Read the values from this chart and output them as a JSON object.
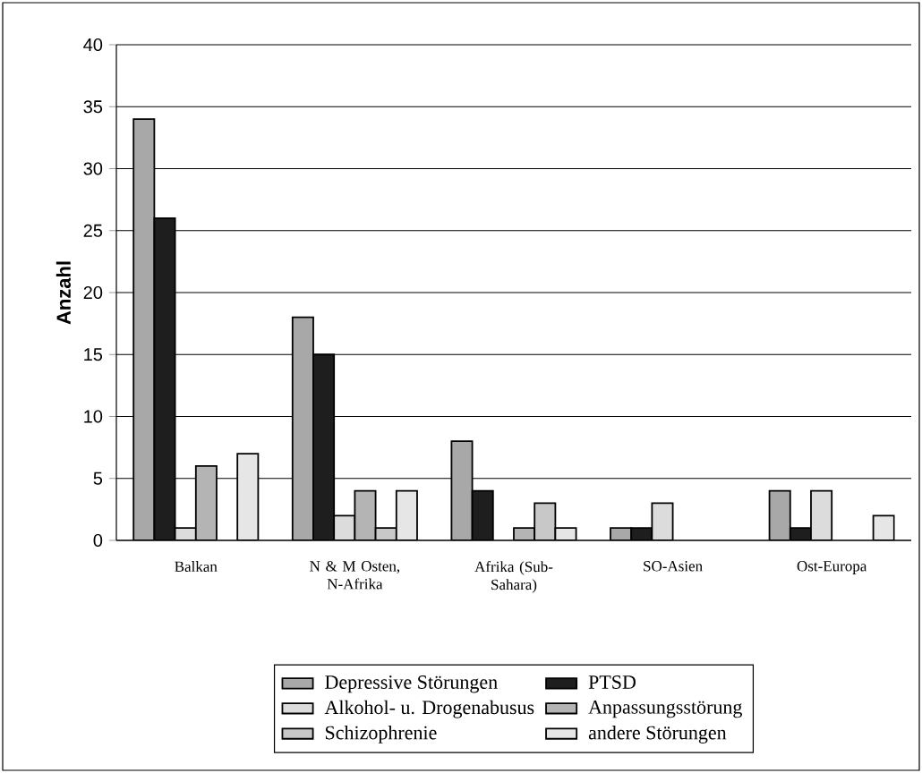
{
  "chart_data": {
    "type": "bar",
    "ylabel": "Anzahl",
    "categories": [
      "Balkan",
      "N & M Osten, N-Afrika",
      "Afrika (Sub-Sahara)",
      "SO-Asien",
      "Ost-Europa"
    ],
    "series": [
      {
        "name": "Depressive Störungen",
        "color": "#a8a8a8",
        "values": [
          34,
          18,
          8,
          1,
          4
        ]
      },
      {
        "name": "PTSD",
        "color": "#1e1e1e",
        "values": [
          26,
          15,
          4,
          1,
          1
        ]
      },
      {
        "name": "Alkohol- u. Drogenabusus",
        "color": "#dcdcdc",
        "values": [
          1,
          2,
          0,
          3,
          4
        ]
      },
      {
        "name": "Anpassungsstörung",
        "color": "#b4b4b4",
        "values": [
          6,
          4,
          1,
          0,
          0
        ]
      },
      {
        "name": "Schizophrenie",
        "color": "#c8c8c8",
        "values": [
          0,
          1,
          3,
          0,
          0
        ]
      },
      {
        "name": "andere Störungen",
        "color": "#e6e6e6",
        "values": [
          7,
          4,
          1,
          0,
          2
        ]
      }
    ],
    "ylim": [
      0,
      40
    ],
    "yticks": [
      0,
      5,
      10,
      15,
      20,
      25,
      30,
      35,
      40
    ],
    "grid": "y",
    "legend": "bottom"
  }
}
